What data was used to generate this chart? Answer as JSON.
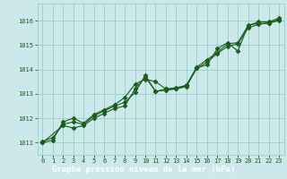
{
  "title": "Graphe pression niveau de la mer (hPa)",
  "background_color": "#cce8ea",
  "plot_background": "#cce8ea",
  "footer_bg": "#1a5c1a",
  "footer_text_color": "#ffffff",
  "grid_color": "#99cccc",
  "line_color": "#1a5c1a",
  "marker_color": "#1a5c1a",
  "xlim": [
    -0.5,
    23.5
  ],
  "ylim": [
    1010.5,
    1016.7
  ],
  "yticks": [
    1011,
    1012,
    1013,
    1014,
    1015,
    1016
  ],
  "xticks": [
    0,
    1,
    2,
    3,
    4,
    5,
    6,
    7,
    8,
    9,
    10,
    11,
    12,
    13,
    14,
    15,
    16,
    17,
    18,
    19,
    20,
    21,
    22,
    23
  ],
  "series1_x": [
    0,
    1,
    2,
    3,
    4,
    5,
    6,
    7,
    8,
    9,
    10,
    11,
    12,
    13,
    14,
    15,
    16,
    17,
    18,
    19,
    20,
    21,
    22,
    23
  ],
  "series1_y": [
    1011.05,
    1011.2,
    1011.75,
    1011.85,
    1011.75,
    1012.1,
    1012.3,
    1012.5,
    1012.65,
    1013.05,
    1013.75,
    1013.1,
    1013.2,
    1013.25,
    1013.35,
    1014.1,
    1014.4,
    1014.7,
    1015.05,
    1015.1,
    1015.8,
    1015.95,
    1015.95,
    1016.1
  ],
  "series2_x": [
    0,
    1,
    2,
    3,
    4,
    5,
    6,
    7,
    8,
    9,
    10,
    11,
    12,
    13,
    14,
    15,
    16,
    17,
    18,
    19,
    20,
    21,
    22,
    23
  ],
  "series2_y": [
    1011.0,
    1011.1,
    1011.85,
    1012.0,
    1011.8,
    1012.15,
    1012.35,
    1012.55,
    1012.85,
    1013.4,
    1013.6,
    1013.5,
    1013.2,
    1013.2,
    1013.3,
    1014.05,
    1014.2,
    1014.85,
    1015.1,
    1014.75,
    1015.82,
    1015.88,
    1015.9,
    1016.05
  ],
  "series3_x": [
    0,
    2,
    3,
    4,
    5,
    6,
    7,
    8,
    9,
    10,
    11,
    12,
    13,
    14,
    15,
    16,
    17,
    18,
    19,
    20,
    21,
    22,
    23
  ],
  "series3_y": [
    1011.0,
    1011.7,
    1011.6,
    1011.7,
    1012.0,
    1012.2,
    1012.4,
    1012.5,
    1013.2,
    1013.7,
    1013.1,
    1013.15,
    1013.2,
    1013.35,
    1014.05,
    1014.3,
    1014.65,
    1014.95,
    1015.05,
    1015.7,
    1015.85,
    1015.9,
    1016.0
  ]
}
